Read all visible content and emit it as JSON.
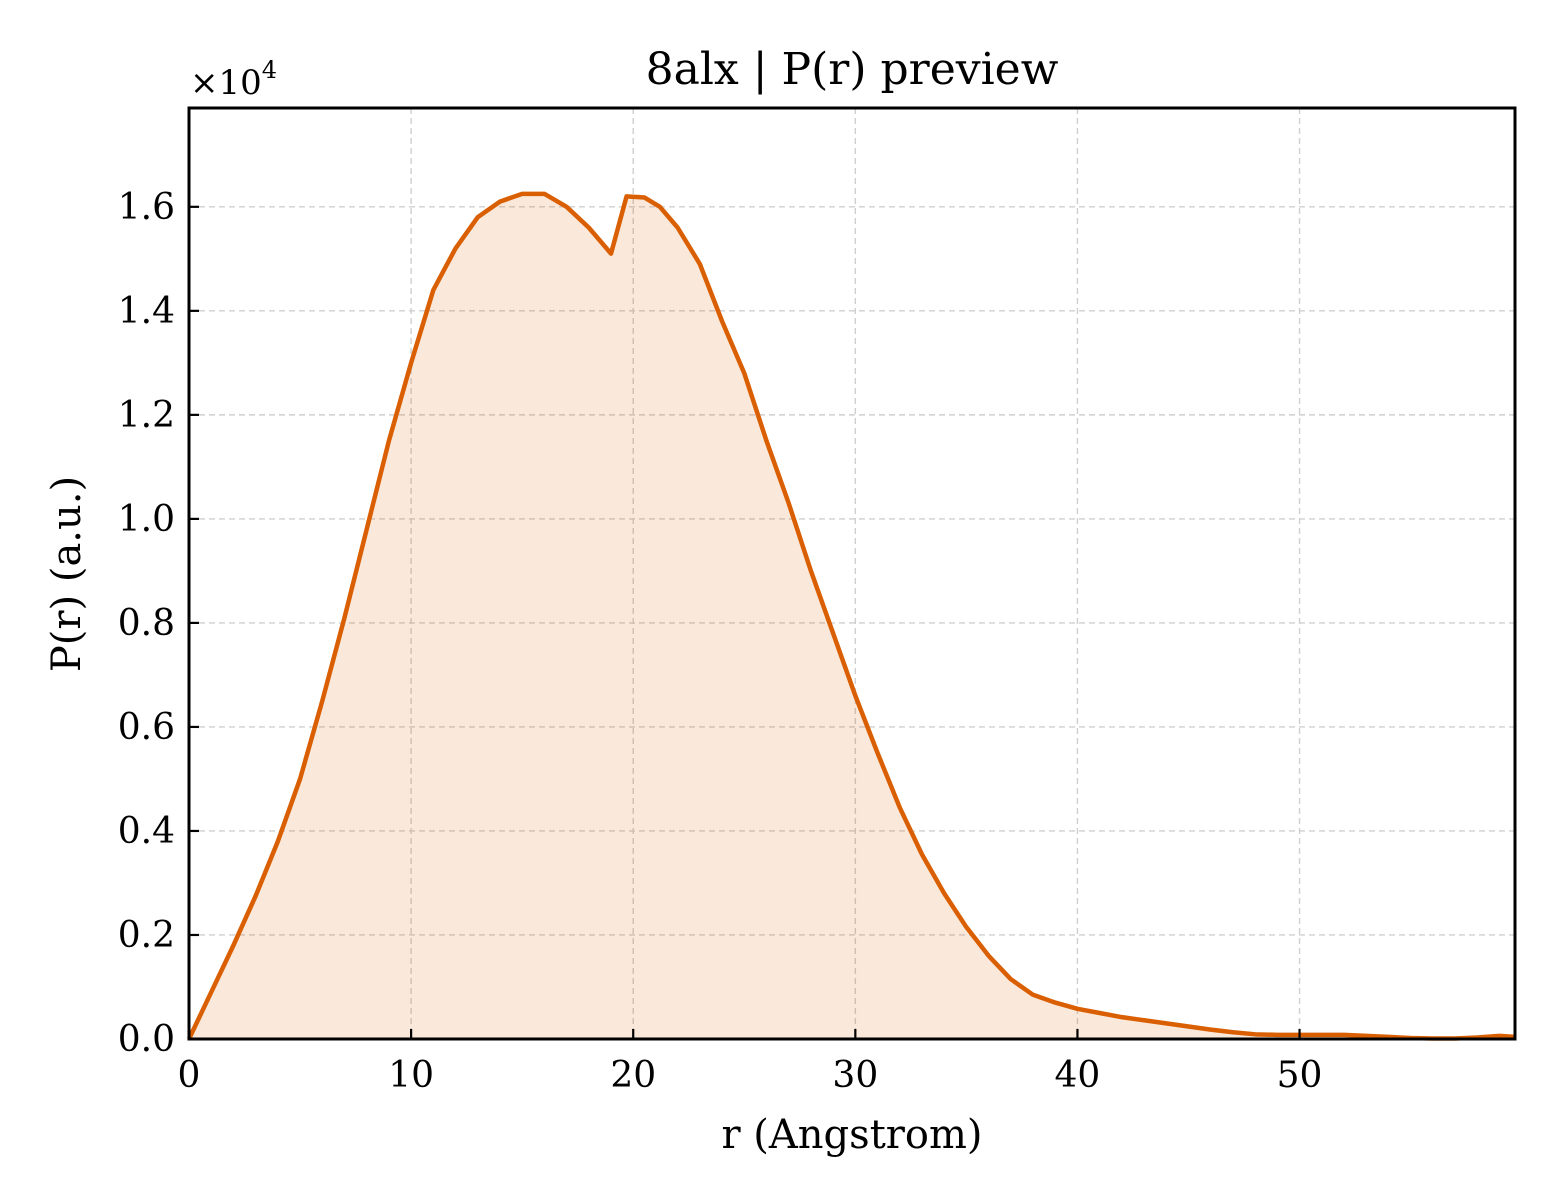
{
  "chart_data": {
    "type": "area",
    "title": "8alx | P(r) preview",
    "xlabel": "r (Angstrom)",
    "ylabel": "P(r) (a.u.)",
    "y_multiplier_label": "×10",
    "y_multiplier_exponent": "4",
    "xlim": [
      0,
      59.7
    ],
    "ylim": [
      0,
      17900
    ],
    "x_ticks": [
      0,
      10,
      20,
      30,
      40,
      50
    ],
    "x_tick_labels": [
      "0",
      "10",
      "20",
      "30",
      "40",
      "50"
    ],
    "y_ticks": [
      0,
      2000,
      4000,
      6000,
      8000,
      10000,
      12000,
      14000,
      16000
    ],
    "y_tick_labels": [
      "0.0",
      "0.2",
      "0.4",
      "0.6",
      "0.8",
      "1.0",
      "1.2",
      "1.4",
      "1.6"
    ],
    "grid": true,
    "colors": {
      "line": "#d95f02",
      "fill": "#d95f02",
      "fill_opacity": 0.14
    },
    "series": [
      {
        "x": [
          0,
          1,
          2,
          3,
          4,
          5,
          6,
          7,
          8,
          9,
          10,
          11,
          12,
          13,
          14,
          15,
          16,
          17,
          18,
          19,
          19.7,
          20.5,
          21.2,
          22,
          23,
          24,
          25,
          26,
          27,
          28,
          29,
          30,
          31,
          32,
          33,
          34,
          35,
          36,
          37,
          38,
          39,
          40,
          41,
          42,
          43,
          44,
          45,
          46,
          47,
          48,
          49,
          50,
          51,
          52,
          53,
          54,
          55,
          56,
          57,
          58,
          59,
          59.7
        ],
        "y": [
          0,
          900,
          1800,
          2750,
          3800,
          5000,
          6500,
          8100,
          9800,
          11500,
          13000,
          14400,
          15200,
          15800,
          16100,
          16250,
          16250,
          16000,
          15600,
          15100,
          16200,
          16180,
          16000,
          15600,
          14900,
          13800,
          12800,
          11500,
          10300,
          9000,
          7800,
          6600,
          5500,
          4450,
          3550,
          2800,
          2150,
          1600,
          1150,
          850,
          700,
          580,
          500,
          420,
          360,
          300,
          240,
          180,
          130,
          90,
          80,
          80,
          80,
          80,
          60,
          40,
          20,
          10,
          10,
          30,
          60,
          40
        ]
      }
    ]
  }
}
